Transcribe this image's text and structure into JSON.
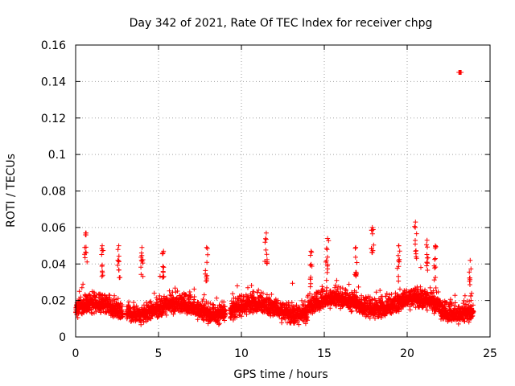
{
  "chart_data": {
    "type": "scatter",
    "title": "Day 342 of 2021, Rate Of TEC Index for receiver chpg",
    "xlabel": "GPS time / hours",
    "ylabel": "ROTI / TECUs",
    "xlim": [
      0,
      25
    ],
    "ylim": [
      0,
      0.16
    ],
    "grid": true,
    "marker": "+",
    "color": "#ff0000",
    "x_ticks": [
      0,
      5,
      10,
      15,
      20,
      25
    ],
    "x_tick_labels": [
      "0",
      "5",
      "10",
      "15",
      "20",
      "25"
    ],
    "y_ticks": [
      0,
      0.02,
      0.04,
      0.06,
      0.08,
      0.1,
      0.12,
      0.14,
      0.16
    ],
    "y_tick_labels": [
      "0",
      "0.02",
      "0.04",
      "0.06",
      "0.08",
      "0.1",
      "0.12",
      "0.14",
      "0.16"
    ],
    "data_gaps_hours": [
      [
        2.85,
        3.05
      ],
      [
        9.05,
        9.3
      ]
    ],
    "x_range_of_data": [
      0,
      24
    ],
    "typical_roti_range": [
      0.005,
      0.03
    ],
    "notable_points": [
      {
        "x": 0.6,
        "y": 0.057
      },
      {
        "x": 1.6,
        "y": 0.05
      },
      {
        "x": 2.6,
        "y": 0.05
      },
      {
        "x": 4.0,
        "y": 0.049
      },
      {
        "x": 5.3,
        "y": 0.047
      },
      {
        "x": 7.9,
        "y": 0.049
      },
      {
        "x": 11.5,
        "y": 0.057
      },
      {
        "x": 14.2,
        "y": 0.047
      },
      {
        "x": 15.2,
        "y": 0.054
      },
      {
        "x": 16.9,
        "y": 0.049
      },
      {
        "x": 17.9,
        "y": 0.06
      },
      {
        "x": 19.5,
        "y": 0.05
      },
      {
        "x": 20.5,
        "y": 0.063
      },
      {
        "x": 21.2,
        "y": 0.053
      },
      {
        "x": 21.7,
        "y": 0.05
      },
      {
        "x": 23.2,
        "y": 0.145
      },
      {
        "x": 23.8,
        "y": 0.042
      }
    ]
  }
}
